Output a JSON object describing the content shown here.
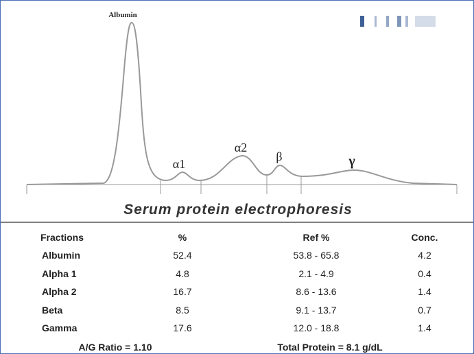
{
  "figure": {
    "peak_labels": [
      "Albumin",
      "α1",
      "α2",
      "β",
      "γ"
    ],
    "caption": "Serum protein electrophoresis"
  },
  "table": {
    "header": [
      "Fractions",
      "%",
      "Ref %",
      "Conc."
    ],
    "rows": [
      [
        "Albumin",
        "52.4",
        "53.8 - 65.8",
        "4.2"
      ],
      [
        "Alpha 1",
        "4.8",
        "2.1 - 4.9",
        "0.4"
      ],
      [
        "Alpha 2",
        "16.7",
        "8.6 - 13.6",
        "1.4"
      ],
      [
        "Beta",
        "8.5",
        "9.1 - 13.7",
        "0.7"
      ],
      [
        "Gamma",
        "17.6",
        "12.0 - 18.8",
        "1.4"
      ]
    ]
  },
  "footer": {
    "ag_ratio": "A/G Ratio = 1.10",
    "total_protein": "Total Protein = 8.1 g/dL"
  }
}
